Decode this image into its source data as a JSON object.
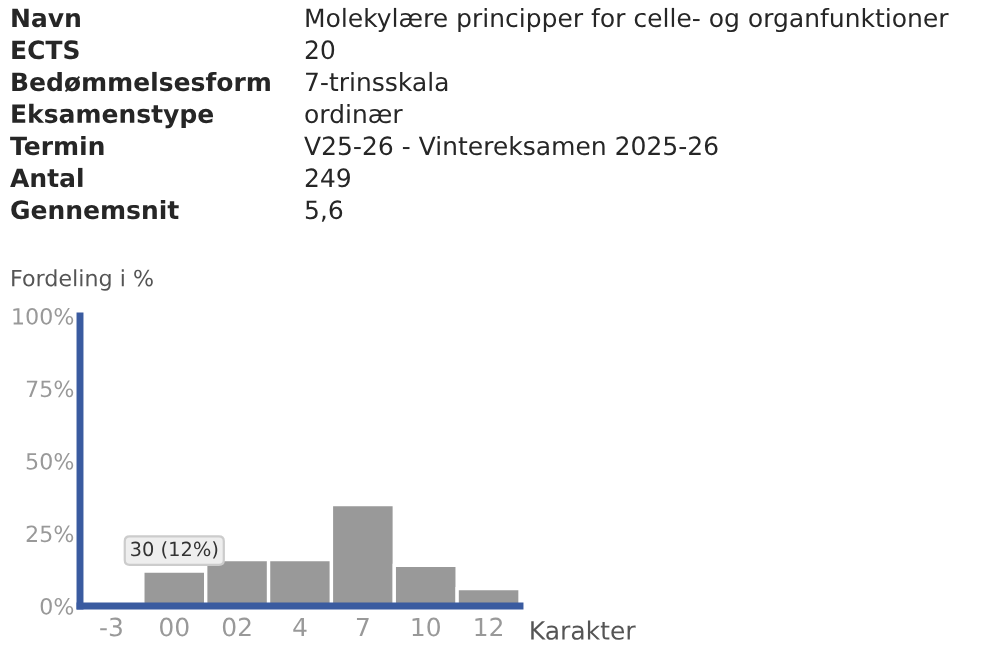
{
  "chart_data": {
    "type": "bar",
    "xlabel": "Karakter",
    "ylabel": "Fordeling i %",
    "categories": [
      "-3",
      "00",
      "02",
      "4",
      "7",
      "10",
      "12"
    ],
    "values": [
      0,
      12,
      16,
      16,
      35,
      14,
      6
    ],
    "color": "#999999",
    "ylim": [
      0,
      100
    ],
    "yticks": [
      {
        "value": 0,
        "label": "0%"
      },
      {
        "value": 25,
        "label": "25%"
      },
      {
        "value": 50,
        "label": "50%"
      },
      {
        "value": 75,
        "label": "75%"
      },
      {
        "value": 100,
        "label": "100%"
      }
    ],
    "grid": false,
    "legend": false,
    "annotations": [
      "Navn",
      "Molekylære principper for celle- og organfunktioner",
      "ECTS",
      "20",
      "Bedømmelsesform",
      "7-trinsskala",
      "Eksamenstype",
      "ordinær",
      "Termin",
      "V25-26 - Vintereksamen 2025-26",
      "Antal",
      "249",
      "Gennemsnit",
      "5,6",
      {
        "text": "30 (12%)",
        "x": "00",
        "y": 12
      }
    ]
  }
}
